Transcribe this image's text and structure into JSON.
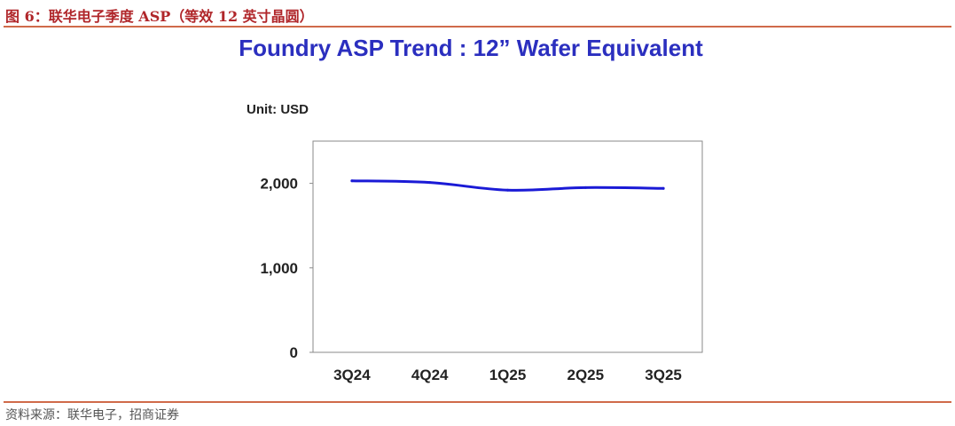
{
  "figure": {
    "caption": "图 6：联华电子季度 ASP（等效 12 英寸晶圆）",
    "source": "资料来源：联华电子，招商证券"
  },
  "colors": {
    "accent_red": "#b0262a",
    "rule": "#d06a4a",
    "title_blue": "#2b2fbf",
    "line_blue": "#1a1ad6"
  },
  "chart_data": {
    "type": "line",
    "title": "Foundry ASP Trend : 12” Wafer Equivalent",
    "unit_label": "Unit: USD",
    "xlabel": "",
    "ylabel": "",
    "categories": [
      "3Q24",
      "4Q24",
      "1Q25",
      "2Q25",
      "3Q25"
    ],
    "series": [
      {
        "values": [
          2030,
          2010,
          1920,
          1950,
          1940
        ],
        "color": "#1a1ad6"
      }
    ],
    "ylim": [
      0,
      2500
    ],
    "yticks": [
      0,
      1000,
      2000
    ],
    "ytick_labels": [
      "0",
      "1,000",
      "2,000"
    ],
    "grid": false,
    "legend": "none"
  }
}
